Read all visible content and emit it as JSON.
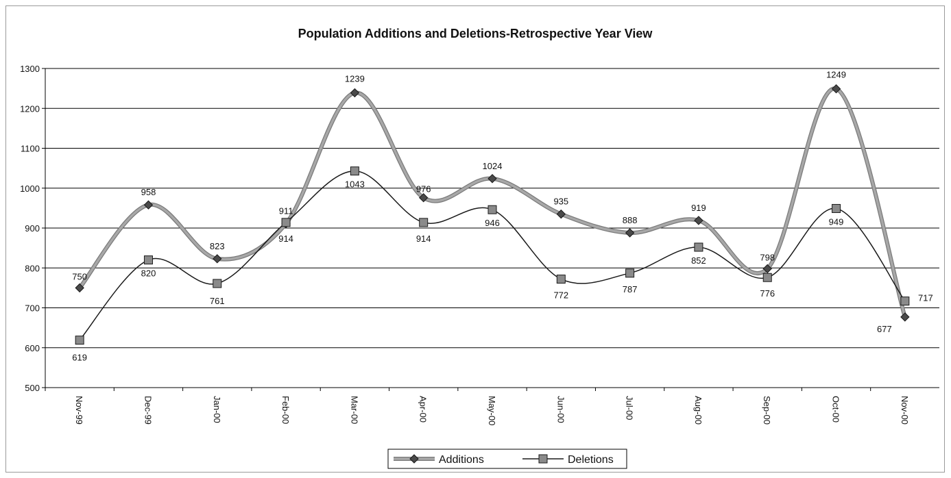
{
  "chart_data": {
    "type": "line",
    "title": "Population Additions and Deletions-Retrospective Year View",
    "xlabel": "",
    "ylabel": "",
    "categories": [
      "Nov-99",
      "Dec-99",
      "Jan-00",
      "Feb-00",
      "Mar-00",
      "Apr-00",
      "May-00",
      "Jun-00",
      "Jul-00",
      "Aug-00",
      "Sep-00",
      "Oct-00",
      "Nov-00"
    ],
    "ylim": [
      500,
      1300
    ],
    "yticks": [
      500,
      600,
      700,
      800,
      900,
      1000,
      1100,
      1200,
      1300
    ],
    "grid": true,
    "legend_position": "bottom",
    "series": [
      {
        "name": "Additions",
        "values": [
          750,
          958,
          823,
          911,
          1239,
          976,
          1024,
          935,
          888,
          919,
          798,
          1249,
          677
        ],
        "color": "#a8a8a8",
        "marker": "diamond"
      },
      {
        "name": "Deletions",
        "values": [
          619,
          820,
          761,
          914,
          1043,
          914,
          946,
          772,
          787,
          852,
          776,
          949,
          717
        ],
        "color": "#1a1a1a",
        "marker": "square"
      }
    ]
  }
}
